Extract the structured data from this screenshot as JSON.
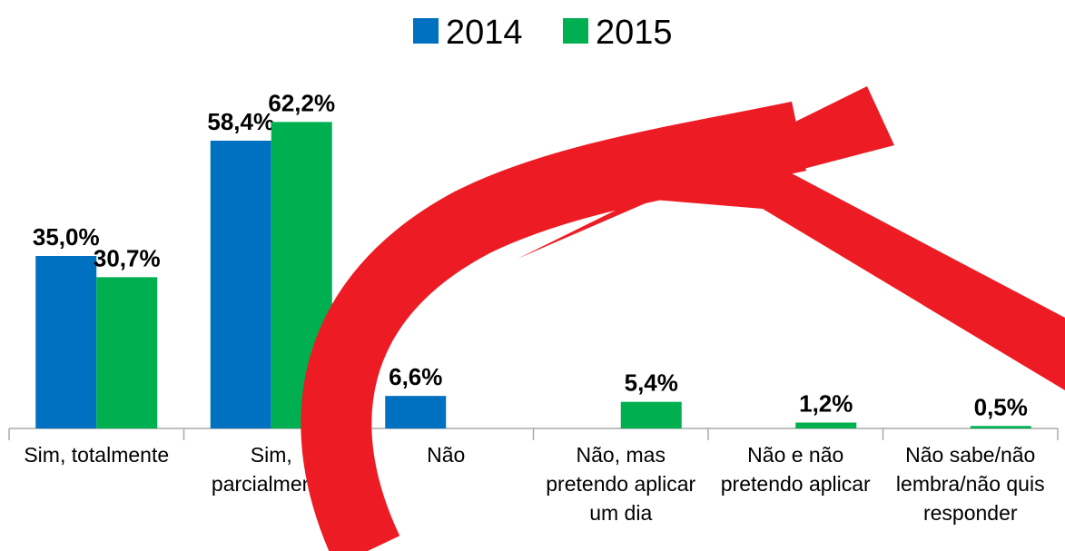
{
  "chart_data": {
    "type": "bar",
    "categories": [
      "Sim, totalmente",
      "Sim, parcialmente",
      "Não",
      "Não, mas pretendo aplicar um dia",
      "Não e não pretendo aplicar",
      "Não sabe/não lembra/não quis responder"
    ],
    "series": [
      {
        "name": "2014",
        "color": "#0070c0",
        "values": [
          35.0,
          58.4,
          6.6,
          null,
          null,
          null
        ],
        "value_labels": [
          "35,0%",
          "58,4%",
          "6,6%",
          null,
          null,
          null
        ]
      },
      {
        "name": "2015",
        "color": "#00b050",
        "values": [
          30.7,
          62.2,
          null,
          5.4,
          1.2,
          0.5
        ],
        "value_labels": [
          "30,7%",
          "62,2%",
          null,
          "5,4%",
          "1,2%",
          "0,5%"
        ]
      }
    ],
    "ylim": [
      0,
      70
    ],
    "legend": "top"
  }
}
